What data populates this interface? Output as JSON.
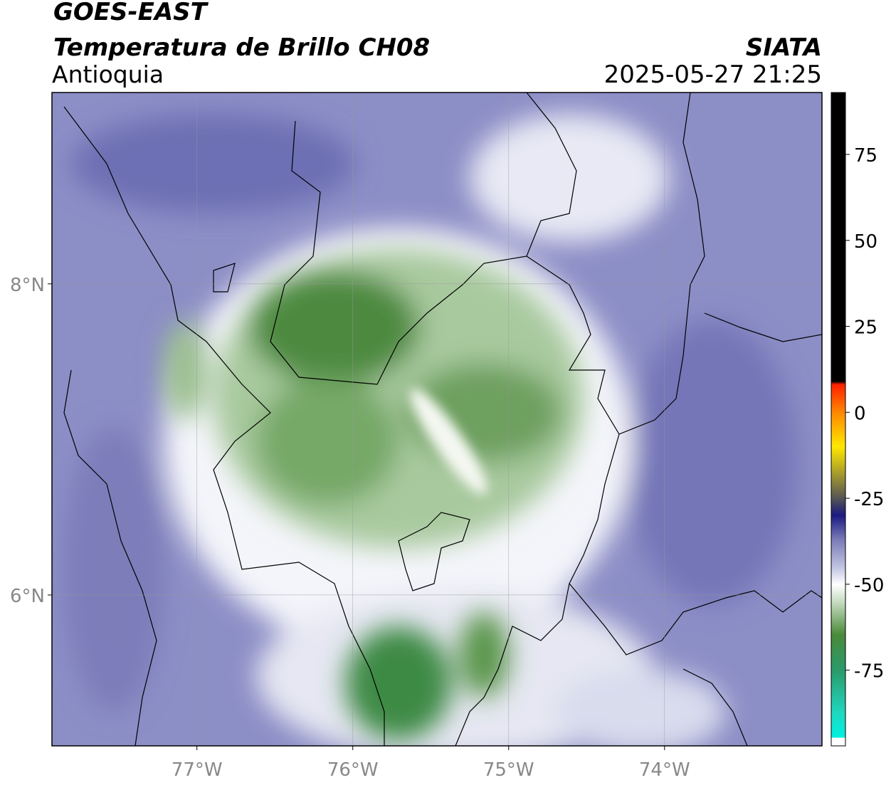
{
  "header": {
    "title": "GOES-EAST",
    "subtitle": "Temperatura de Brillo CH08",
    "region": "Antioquia",
    "source": "SIATA",
    "datetime": "2025-05-27 21:25"
  },
  "map": {
    "xlim": [
      -77.93,
      -72.99
    ],
    "ylim": [
      5.03,
      9.23
    ],
    "xticks": [
      {
        "value": -77,
        "label": "77°W"
      },
      {
        "value": -76,
        "label": "76°W"
      },
      {
        "value": -75,
        "label": "75°W"
      },
      {
        "value": -74,
        "label": "74°W"
      }
    ],
    "yticks": [
      {
        "value": 8,
        "label": "8°N"
      },
      {
        "value": 6,
        "label": "6°N"
      }
    ],
    "grid": true
  },
  "colorbar": {
    "lim": [
      -97,
      93
    ],
    "ticks": [
      75,
      50,
      25,
      0,
      -25,
      -50,
      -75
    ]
  }
}
